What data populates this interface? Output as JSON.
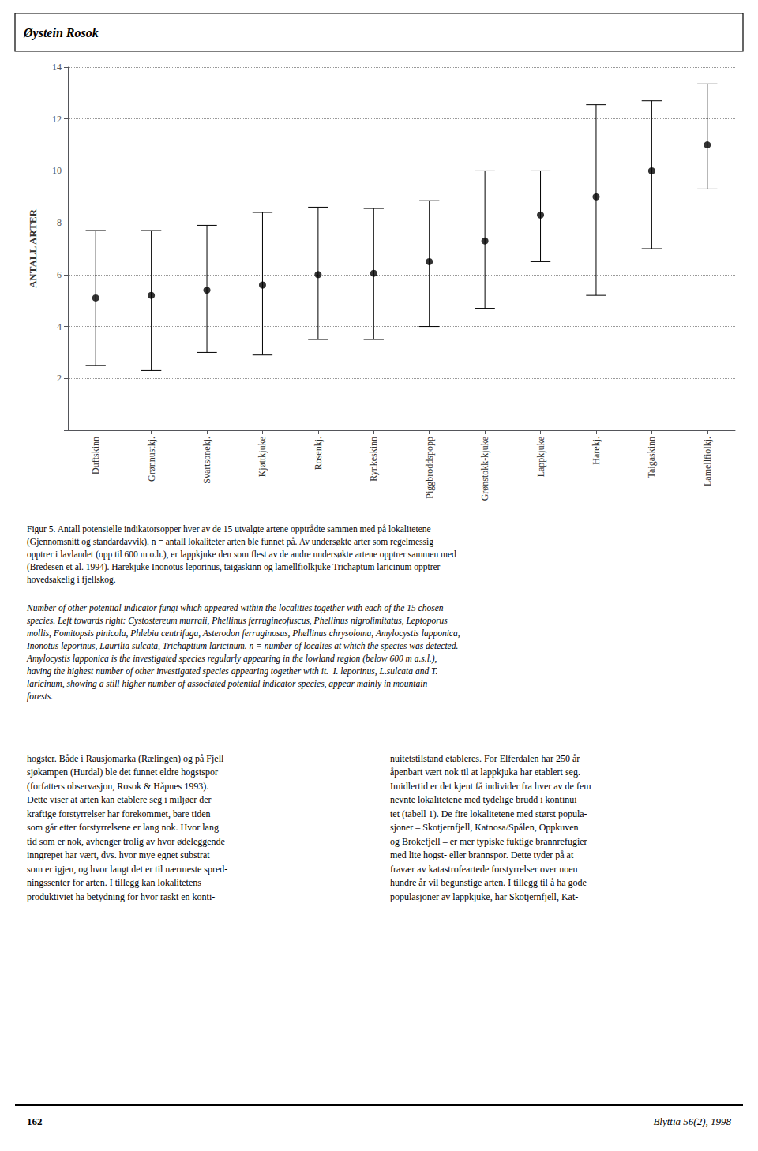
{
  "chart_data": {
    "type": "scatter",
    "header": "Øystein Rosok",
    "ylabel": "ANTALL ARTER",
    "categories": [
      "Duftskinn",
      "Grønnustkj.",
      "Svartsonekj.",
      "Kjøttkjuke",
      "Rosenkj.",
      "Rynkeskinn",
      "Piggbroddspopp",
      "Grønstokk-kjuke",
      "Lappkjuke",
      "Harekj.",
      "Taigaskinn",
      "Lamellfiolkj."
    ],
    "values": [
      5.1,
      5.2,
      5.4,
      5.6,
      6.0,
      6.05,
      6.5,
      7.3,
      8.3,
      9.0,
      10.0,
      11.0
    ],
    "lower": [
      2.5,
      2.3,
      3.0,
      2.9,
      3.5,
      3.5,
      4.0,
      4.7,
      6.5,
      5.2,
      7.0,
      9.3
    ],
    "upper": [
      7.7,
      7.7,
      7.9,
      8.4,
      8.6,
      8.55,
      8.85,
      10.0,
      10.0,
      12.55,
      12.7,
      13.35
    ],
    "color": "#000000",
    "ylim": [
      0,
      14
    ],
    "yticks": [
      2,
      4,
      6,
      8,
      10,
      12,
      14
    ],
    "grid": true,
    "caption": "Figur 5. Antall potensielle indikatorsopper hver av de 15 utvalgte artene opptrådte sammen med på lokalitetene\n(Gjennomsnitt og standardavvik). n = antall lokaliteter arten ble funnet på. Av undersøkte arter som regelmessig\nopptrer i lavlandet (opp til 600 m o.h.), er lappkjuke den som flest av de andre undersøkte artene opptrer sammen med\n(Bredesen et al. 1994). Harekjuke Inonotus leporinus, taigaskinn og lamellfiolkjuke Trichaptum laricinum opptrer\nhovedsakelig i fjellskog.",
    "caption_english": "Number of other potential indicator fungi which appeared within the localities together with each of the 15 chosen\nspecies. Left towards right: Cystostereum murraii, Phellinus ferrugineofuscus, Phellinus nigrolimitatus, Leptoporus\nmollis, Fomitopsis pinicola, Phlebia centrifuga, Asterodon ferruginosus, Phellinus chrysoloma, Amylocystis lapponica,\nInonotus leporinus, Laurilia sulcata, Trichaptium laricinum. n = number of localies at which the species was detected.\nAmylocystis lapponica is the investigated species regularly appearing in the lowland region (below 600 m a.s.l.),\nhaving the highest number of other investigated species appearing together with it.  I. leporinus, L.sulcata and T.\nlaricinum, showing a still higher number of associated potential indicator species, appear mainly in mountain\nforests.",
    "body_left": "hogster. Både i Rausjomarka (Rælingen) og på Fjell-\nsjøkampen (Hurdal) ble det funnet eldre hogstspor\n(forfatters observasjon, Rosok & Håpnes 1993).\nDette viser at arten kan etablere seg i miljøer der\nkraftige forstyrrelser har forekommet, bare tiden\nsom går etter forstyrrelsene er lang nok. Hvor lang\ntid som er nok, avhenger trolig av hvor ødeleggende\ninngrepet har vært, dvs. hvor mye egnet substrat\nsom er igjen, og hvor langt det er til nærmeste spred-\nningssenter for arten. I tillegg kan lokalitetens\nproduktiviet ha betydning for hvor raskt en konti-",
    "body_right": "nuitetstilstand etableres. For Elferdalen har 250 år\nåpenbart vært nok til at lappkjuka har etablert seg.\nImidlertid er det kjent få individer fra hver av de fem\nnevnte lokalitetene med tydelige brudd i kontinui-\ntet (tabell 1). De fire lokalitetene med størst popula-\nsjoner – Skotjernfjell, Katnosa/Spålen, Oppkuven\nog Brokefjell – er mer typiske fuktige brannrefugier\nmed lite hogst- eller brannspor. Dette tyder på at\nfravær av katastrofeartede forstyrrelser over noen\nhundre år vil begunstige arten. I tillegg til å ha gode\npopulasjoner av lappkjuke, har Skotjernfjell, Kat-",
    "footer_left": "162",
    "footer_right": "Blyttia 56(2), 1998"
  }
}
